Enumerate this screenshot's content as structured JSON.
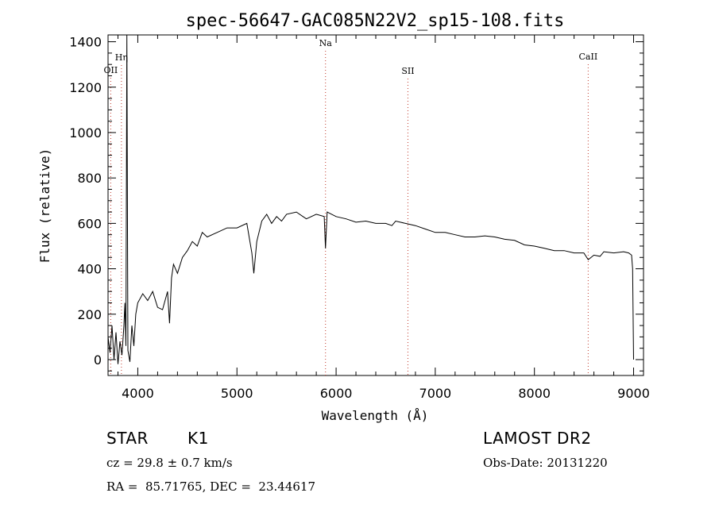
{
  "chart_data": {
    "type": "line",
    "title": "spec-56647-GAC085N22V2_sp15-108.fits",
    "xlabel": "Wavelength (Å)",
    "ylabel": "Flux (relative)",
    "xlim": [
      3700,
      9100
    ],
    "ylim": [
      -70,
      1430
    ],
    "xticks": [
      4000,
      5000,
      6000,
      7000,
      8000,
      9000
    ],
    "yticks": [
      0,
      200,
      400,
      600,
      800,
      1000,
      1200,
      1400
    ],
    "grid": false,
    "series": [
      {
        "x": [
          3700,
          3720,
          3740,
          3760,
          3780,
          3800,
          3820,
          3840,
          3860,
          3870,
          3880,
          3890,
          3900,
          3920,
          3940,
          3960,
          3980,
          4000,
          4050,
          4100,
          4150,
          4200,
          4250,
          4300,
          4320,
          4340,
          4360,
          4400,
          4450,
          4500,
          4550,
          4600,
          4650,
          4700,
          4800,
          4900,
          5000,
          5100,
          5150,
          5170,
          5200,
          5250,
          5300,
          5350,
          5400,
          5450,
          5500,
          5600,
          5700,
          5800,
          5880,
          5893,
          5910,
          6000,
          6100,
          6200,
          6300,
          6400,
          6500,
          6563,
          6600,
          6700,
          6800,
          6900,
          7000,
          7100,
          7200,
          7300,
          7400,
          7500,
          7600,
          7700,
          7800,
          7900,
          8000,
          8100,
          8200,
          8300,
          8400,
          8498,
          8542,
          8600,
          8662,
          8700,
          8800,
          8900,
          8950,
          8980,
          8990,
          9000
        ],
        "y": [
          100,
          30,
          150,
          0,
          120,
          -20,
          80,
          20,
          150,
          250,
          60,
          1430,
          40,
          -10,
          150,
          60,
          200,
          250,
          290,
          260,
          300,
          230,
          220,
          300,
          160,
          360,
          420,
          380,
          450,
          480,
          520,
          500,
          560,
          540,
          560,
          580,
          580,
          600,
          470,
          380,
          520,
          610,
          640,
          600,
          630,
          610,
          640,
          650,
          620,
          640,
          630,
          490,
          650,
          630,
          620,
          605,
          610,
          600,
          600,
          590,
          610,
          600,
          590,
          575,
          560,
          560,
          550,
          540,
          540,
          545,
          540,
          530,
          525,
          505,
          500,
          490,
          480,
          480,
          470,
          470,
          440,
          460,
          455,
          475,
          470,
          475,
          470,
          460,
          400,
          0
        ]
      }
    ],
    "markers": [
      {
        "label": "OII",
        "x": 3727
      },
      {
        "label": "Hη",
        "x": 3835
      },
      {
        "label": "Na",
        "x": 5893
      },
      {
        "label": "SII",
        "x": 6724
      },
      {
        "label": "CaII",
        "x": 8542
      }
    ]
  },
  "info": {
    "class_label": "STAR",
    "subclass_label": "K1",
    "cz_text": "cz = 29.8 ± 0.7 km/s",
    "radec_text": "RA =  85.71765, DEC =  23.44617",
    "survey_text": "LAMOST DR2",
    "obsdate_text": "Obs-Date: 20131220"
  }
}
